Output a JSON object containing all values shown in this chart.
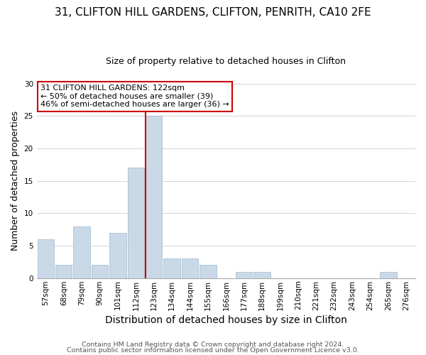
{
  "title_line1": "31, CLIFTON HILL GARDENS, CLIFTON, PENRITH, CA10 2FE",
  "title_line2": "Size of property relative to detached houses in Clifton",
  "xlabel": "Distribution of detached houses by size in Clifton",
  "ylabel": "Number of detached properties",
  "bar_labels": [
    "57sqm",
    "68sqm",
    "79sqm",
    "90sqm",
    "101sqm",
    "112sqm",
    "123sqm",
    "134sqm",
    "144sqm",
    "155sqm",
    "166sqm",
    "177sqm",
    "188sqm",
    "199sqm",
    "210sqm",
    "221sqm",
    "232sqm",
    "243sqm",
    "254sqm",
    "265sqm",
    "276sqm"
  ],
  "bar_values": [
    6,
    2,
    8,
    2,
    7,
    17,
    25,
    3,
    3,
    2,
    0,
    1,
    1,
    0,
    0,
    0,
    0,
    0,
    0,
    1,
    0
  ],
  "bar_color": "#c9d9e8",
  "bar_edge_color": "#a0b8cc",
  "vline_index": 6,
  "vline_color": "#cc0000",
  "annotation_line1": "31 CLIFTON HILL GARDENS: 122sqm",
  "annotation_line2": "← 50% of detached houses are smaller (39)",
  "annotation_line3": "46% of semi-detached houses are larger (36) →",
  "annotation_box_facecolor": "#ffffff",
  "annotation_box_edgecolor": "#cc0000",
  "ylim": [
    0,
    30
  ],
  "yticks": [
    0,
    5,
    10,
    15,
    20,
    25,
    30
  ],
  "footer_line1": "Contains HM Land Registry data © Crown copyright and database right 2024.",
  "footer_line2": "Contains public sector information licensed under the Open Government Licence v3.0.",
  "bg_color": "#ffffff",
  "grid_color": "#cccccc",
  "title_fontsize": 11,
  "subtitle_fontsize": 9,
  "xlabel_fontsize": 10,
  "ylabel_fontsize": 9,
  "tick_fontsize": 7.5,
  "annotation_fontsize": 8,
  "footer_fontsize": 6.8
}
